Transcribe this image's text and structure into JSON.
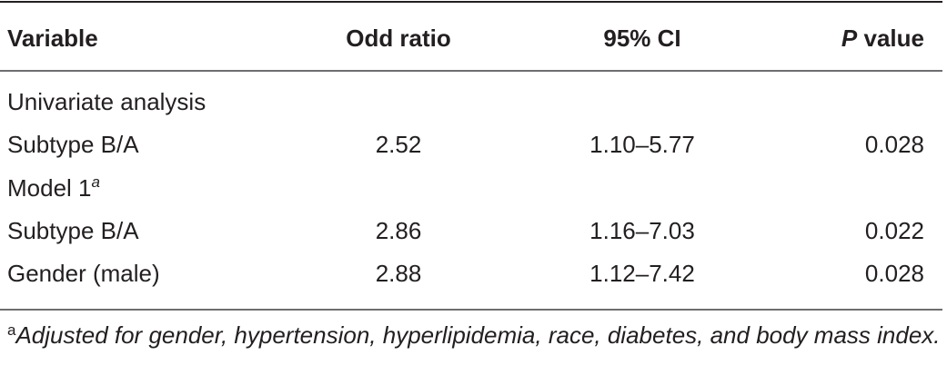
{
  "table": {
    "header": [
      "Variable",
      "Odd ratio",
      "95% CI",
      {
        "italic": "P",
        "text": "value"
      }
    ],
    "rows": [
      [
        "Univariate analysis"
      ],
      [
        "Subtype B/A",
        "2.52",
        "1.10–5.77",
        "0.028"
      ],
      [
        {
          "text": "Model 1",
          "superscript": "a"
        }
      ],
      [
        "Subtype B/A",
        "2.86",
        "1.16–7.03",
        "0.022"
      ],
      [
        "Gender (male)",
        "2.88",
        "1.12–7.42",
        "0.028"
      ]
    ]
  },
  "footnote": {
    "marker": "a",
    "text": "Adjusted for gender, hypertension, hyperlipidemia, race, diabetes, and body mass index."
  }
}
